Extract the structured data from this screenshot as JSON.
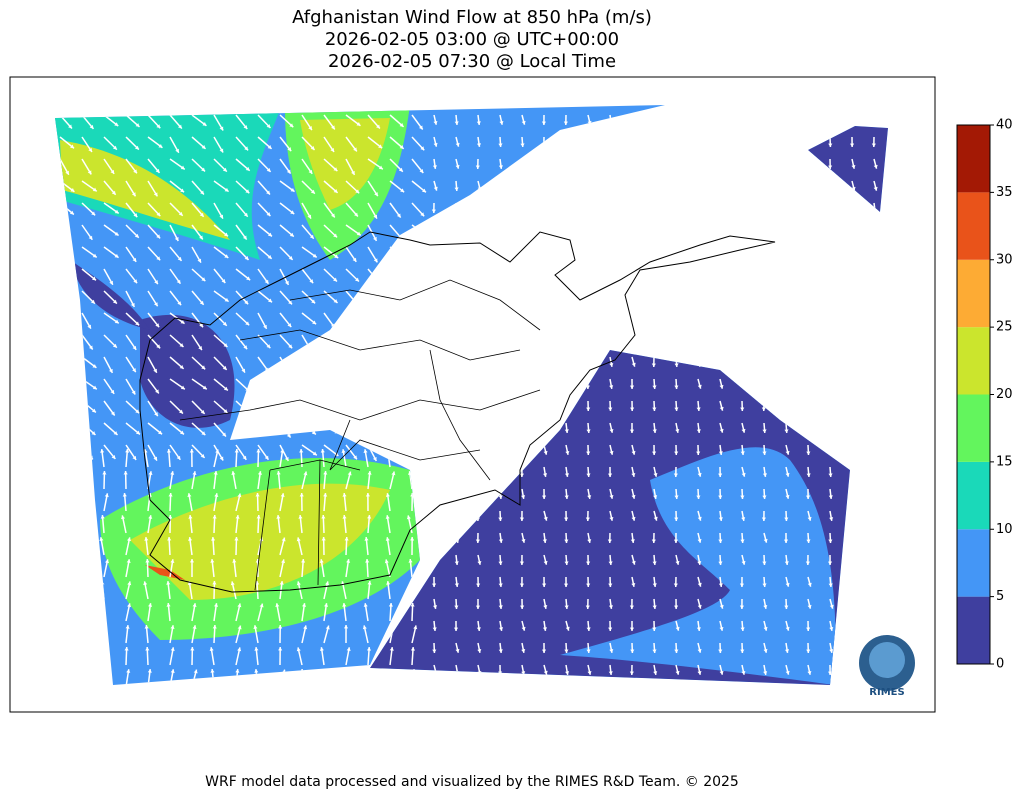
{
  "header": {
    "title_lines": [
      "Afghanistan Wind Flow at 850 hPa (m/s)",
      "2026-02-05 03:00 @ UTC+00:00",
      "2026-02-05 07:30 @ Local Time"
    ]
  },
  "colorbar": {
    "lim": [
      0,
      40
    ],
    "ticks": [
      0,
      5,
      10,
      15,
      20,
      25,
      30,
      35,
      40
    ],
    "colors": [
      "#3f3f9f",
      "#4496f6",
      "#1ad9b9",
      "#63f55d",
      "#cbe52d",
      "#fdab34",
      "#e9531a",
      "#a31905"
    ]
  },
  "logo": {
    "label": "RIMES"
  },
  "footer": "WRF model data processed and visualized by the RIMES R&D Team. © 2025"
}
